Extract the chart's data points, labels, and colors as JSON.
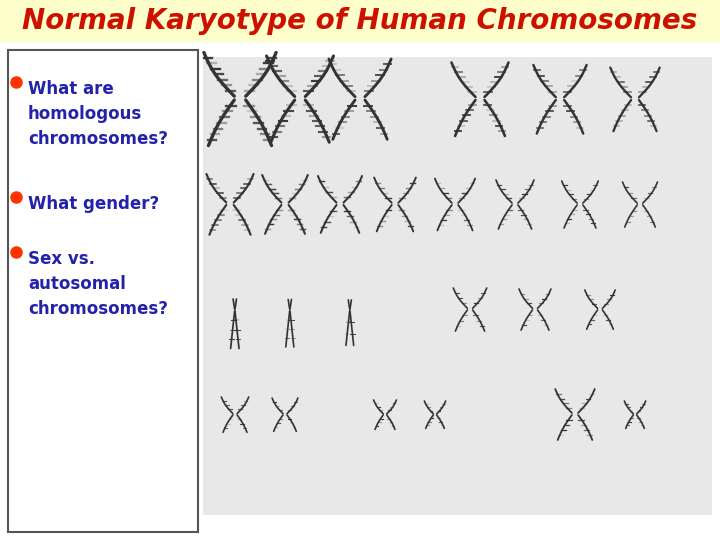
{
  "title": "Normal Karyotype of Human Chromosomes",
  "title_color": "#cc1100",
  "title_bg_color": "#ffffcc",
  "title_fontsize": 20,
  "bullet_points": [
    "What are\nhomologous\nchromosomes?",
    "What gender?",
    "Sex vs.\nautosomal\nchromosomes?"
  ],
  "bullet_color": "#ff3300",
  "text_color": "#2222aa",
  "text_fontsize": 12,
  "text_fontweight": "bold",
  "box_bg": "#ffffff",
  "box_edge": "#555555",
  "karyotype_bg": "#e8e8e8",
  "fig_bg": "#ffffff",
  "overall_bg": "#ffffff"
}
